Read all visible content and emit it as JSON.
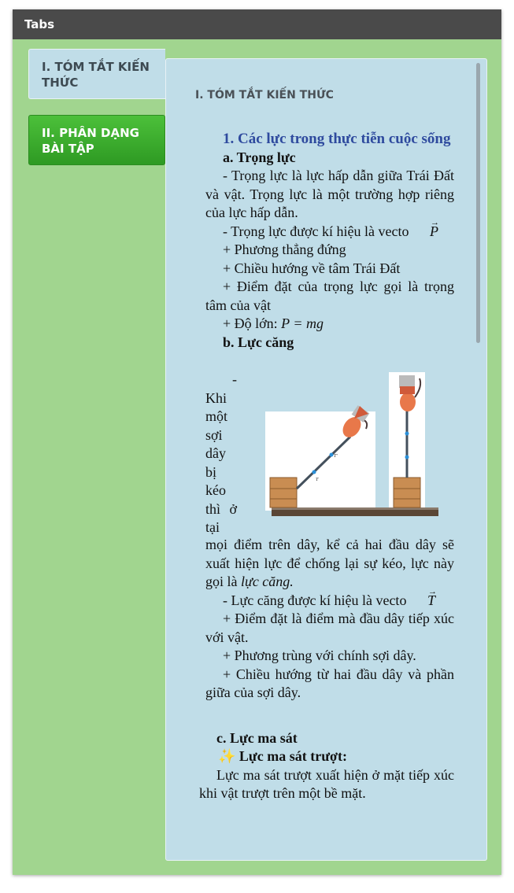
{
  "header": {
    "title": "Tabs"
  },
  "tabs": [
    {
      "label": "I. TÓM TẮT KIẾN THỨC",
      "active": true
    },
    {
      "label": "II. PHÂN DẠNG BÀI TẬP",
      "active": false
    }
  ],
  "content": {
    "section_title": "I. TÓM TẮT KIẾN THỨC",
    "heading1": "1. Các lực trong thực tiễn cuộc sống",
    "a_title": "a. Trọng lực",
    "a_p1": "- Trọng lực là lực hấp dẫn giữa Trái Đất và vật. Trọng lực là một trường hợp riêng của lực hấp dẫn.",
    "a_p2": "- Trọng lực được kí hiệu là vecto",
    "a_p2_symbol": "P",
    "a_p3": "+ Phương thẳng đứng",
    "a_p4": "+ Chiều hướng về tâm Trái Đất",
    "a_p5": "+ Điểm đặt của trọng lực gọi là trọng tâm của vật",
    "a_p6": "+ Độ lớn:",
    "a_p6_formula": "P = mg",
    "b_title": "b. Lực căng",
    "b_narrow_words": [
      "-",
      "Khi",
      "một",
      "sợi",
      "dây",
      "bị",
      "kéo"
    ],
    "b_narrow_thi": "thì",
    "b_narrow_o": "ở",
    "b_narrow_tai": "tại",
    "b_p1_cont": "mọi điểm trên dây, kể cả hai đầu dây sẽ xuất hiện lực để chống lại sự kéo, lực này gọi là",
    "b_p1_term": "lực căng.",
    "b_p2": "- Lực căng được kí hiệu là vecto",
    "b_p2_symbol": "T",
    "b_p3": "+ Điểm đặt là điểm mà đầu dây tiếp xúc với vật.",
    "b_p4": "+ Phương trùng với chính sợi dây.",
    "b_p5": "+ Chiều hướng từ hai đầu dây và phần giữa của sợi dây.",
    "c_title": "c. Lực ma sát",
    "c_sub_icon": "✨",
    "c_sub": "Lực ma sát trượt:",
    "c_p1": "Lực ma sát trượt xuất hiện ở mặt tiếp xúc khi vật trượt trên một bề mặt."
  },
  "figure": {
    "label_T": "T",
    "label_T2": "T'"
  },
  "colors": {
    "accent_green": "#3fae2f",
    "panel_green": "#a1d58f",
    "content_blue": "#c0dde8",
    "heading_blue": "#2e4a9e",
    "header_gray": "#4a4a4a"
  }
}
